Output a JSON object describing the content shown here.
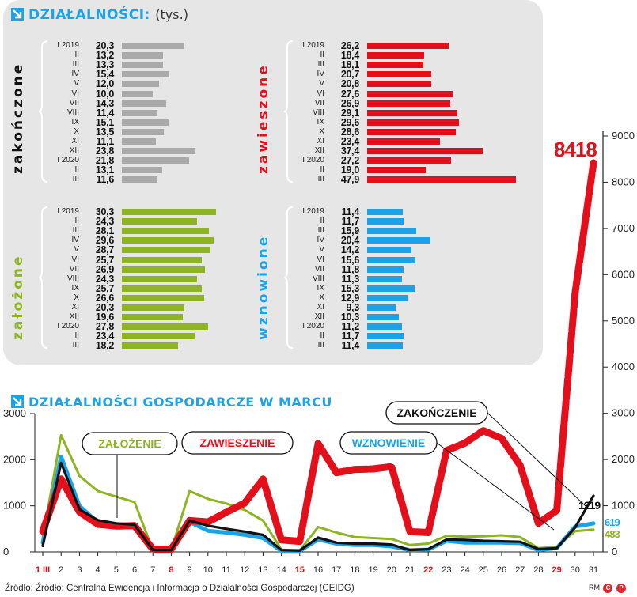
{
  "header": {
    "title": "DZIAŁALNOŚCI:",
    "unit": "(tys.)"
  },
  "panels": [
    {
      "key": "closed",
      "label": "zakończone",
      "color": "#aaaaaa",
      "label_color": "#111111",
      "rows": [
        [
          "I 2019",
          "20,3",
          20.3
        ],
        [
          "II",
          "13,2",
          13.2
        ],
        [
          "III",
          "13,3",
          13.3
        ],
        [
          "IV",
          "15,4",
          15.4
        ],
        [
          "V",
          "12,0",
          12.0
        ],
        [
          "VI",
          "10,0",
          10.0
        ],
        [
          "VII",
          "14,3",
          14.3
        ],
        [
          "VIII",
          "11,4",
          11.4
        ],
        [
          "IX",
          "15,1",
          15.1
        ],
        [
          "X",
          "13,5",
          13.5
        ],
        [
          "XI",
          "11,1",
          11.1
        ],
        [
          "XII",
          "23,8",
          23.8
        ],
        [
          "I 2020",
          "21,8",
          21.8
        ],
        [
          "II",
          "13,1",
          13.1
        ],
        [
          "III",
          "11,6",
          11.6
        ]
      ]
    },
    {
      "key": "suspended",
      "label": "zawieszone",
      "color": "#e30f1b",
      "label_color": "#e30f1b",
      "rows": [
        [
          "I 2019",
          "26,2",
          26.2
        ],
        [
          "II",
          "18,4",
          18.4
        ],
        [
          "III",
          "18,1",
          18.1
        ],
        [
          "IV",
          "20,7",
          20.7
        ],
        [
          "V",
          "20,8",
          20.8
        ],
        [
          "VI",
          "27,6",
          27.6
        ],
        [
          "VII",
          "26,9",
          26.9
        ],
        [
          "VIII",
          "29,1",
          29.1
        ],
        [
          "IX",
          "29,6",
          29.6
        ],
        [
          "X",
          "28,6",
          28.6
        ],
        [
          "XI",
          "23,4",
          23.4
        ],
        [
          "XII",
          "37,4",
          37.4
        ],
        [
          "I 2020",
          "27,2",
          27.2
        ],
        [
          "II",
          "19,0",
          19.0
        ],
        [
          "III",
          "47,9",
          47.9
        ]
      ]
    },
    {
      "key": "founded",
      "label": "założone",
      "color": "#8cb521",
      "label_color": "#8cb521",
      "rows": [
        [
          "I 2019",
          "30,3",
          30.3
        ],
        [
          "II",
          "24,3",
          24.3
        ],
        [
          "III",
          "28,1",
          28.1
        ],
        [
          "IV",
          "29,6",
          29.6
        ],
        [
          "V",
          "28,7",
          28.7
        ],
        [
          "VI",
          "25,7",
          25.7
        ],
        [
          "VII",
          "26,9",
          26.9
        ],
        [
          "VIII",
          "24,3",
          24.3
        ],
        [
          "IX",
          "25,7",
          25.7
        ],
        [
          "X",
          "26,6",
          26.6
        ],
        [
          "XI",
          "20,3",
          20.3
        ],
        [
          "XII",
          "19,6",
          19.6
        ],
        [
          "I 2020",
          "27,8",
          27.8
        ],
        [
          "II",
          "23,4",
          23.4
        ],
        [
          "III",
          "18,2",
          18.2
        ]
      ]
    },
    {
      "key": "resumed",
      "label": "wznowione",
      "color": "#1aa3e8",
      "label_color": "#1aa3e8",
      "rows": [
        [
          "I 2019",
          "11,4",
          11.4
        ],
        [
          "II",
          "11,7",
          11.7
        ],
        [
          "III",
          "15,9",
          15.9
        ],
        [
          "IV",
          "20,4",
          20.4
        ],
        [
          "V",
          "14,2",
          14.2
        ],
        [
          "VI",
          "15,6",
          15.6
        ],
        [
          "VII",
          "11,8",
          11.8
        ],
        [
          "VIII",
          "11,3",
          11.3
        ],
        [
          "IX",
          "15,3",
          15.3
        ],
        [
          "X",
          "12,9",
          12.9
        ],
        [
          "XI",
          "9,3",
          9.3
        ],
        [
          "XII",
          "10,3",
          10.3
        ],
        [
          "I 2020",
          "11,2",
          11.2
        ],
        [
          "II",
          "11,7",
          11.7
        ],
        [
          "III",
          "11,4",
          11.4
        ]
      ]
    }
  ],
  "chart_data": {
    "type": "line",
    "title": "DZIAŁALNOŚCI GOSPODARCZE W MARCU",
    "x": [
      "1 III",
      "2",
      "3",
      "4",
      "5",
      "6",
      "7",
      "8",
      "9",
      "10",
      "11",
      "12",
      "13",
      "14",
      "15",
      "16",
      "17",
      "18",
      "19",
      "20",
      "21",
      "22",
      "23",
      "24",
      "25",
      "26",
      "27",
      "28",
      "29",
      "30",
      "31"
    ],
    "highlight_x": [
      "1 III",
      "8",
      "15",
      "22",
      "29"
    ],
    "y_left": {
      "ticks": [
        "0",
        "1000",
        "2000",
        "3000"
      ],
      "range": [
        0,
        3000
      ]
    },
    "y_right": {
      "ticks": [
        "0",
        "1000",
        "2000",
        "3000",
        "4000",
        "5000",
        "6000",
        "7000",
        "8000",
        "9000"
      ],
      "range": [
        0,
        9000
      ]
    },
    "series": [
      {
        "name": "ZAŁOŻENIE",
        "color": "#8cb521",
        "values": [
          300,
          2530,
          1650,
          1320,
          1200,
          1080,
          40,
          40,
          1320,
          1150,
          1050,
          910,
          680,
          50,
          30,
          540,
          420,
          320,
          300,
          280,
          150,
          180,
          350,
          330,
          340,
          360,
          320,
          80,
          110,
          450,
          483
        ]
      },
      {
        "name": "WZNOWIENIE",
        "color": "#1aa3e8",
        "values": [
          200,
          2070,
          1000,
          640,
          580,
          570,
          30,
          30,
          650,
          460,
          420,
          370,
          300,
          20,
          20,
          270,
          180,
          150,
          150,
          120,
          40,
          50,
          240,
          200,
          200,
          200,
          190,
          40,
          80,
          550,
          619
        ]
      },
      {
        "name": "ZAWIESZENIE",
        "color": "#e30f1b",
        "values": [
          450,
          1580,
          870,
          600,
          560,
          570,
          60,
          60,
          680,
          650,
          860,
          1060,
          1580,
          260,
          230,
          2350,
          1720,
          1790,
          1800,
          1850,
          440,
          420,
          2200,
          2360,
          2630,
          2460,
          1880,
          620,
          900,
          5600,
          8418
        ]
      },
      {
        "name": "ZAKOŃCZENIE",
        "color": "#111111",
        "values": [
          130,
          1930,
          920,
          690,
          620,
          590,
          40,
          40,
          680,
          570,
          500,
          440,
          370,
          40,
          30,
          310,
          200,
          180,
          180,
          160,
          40,
          60,
          270,
          260,
          240,
          230,
          220,
          60,
          80,
          530,
          1219
        ]
      }
    ],
    "end_labels": {
      "ZAWIESZENIE": "8418",
      "ZAKOŃCZENIE": "1219",
      "WZNOWIENIE": "619",
      "ZAŁOŻENIE": "483"
    }
  },
  "footer": {
    "source": "Źródło: Źródło: Centralna Ewidencja i Informacja o Działalności Gospodarczej (CEIDG)",
    "credit": "RM"
  }
}
